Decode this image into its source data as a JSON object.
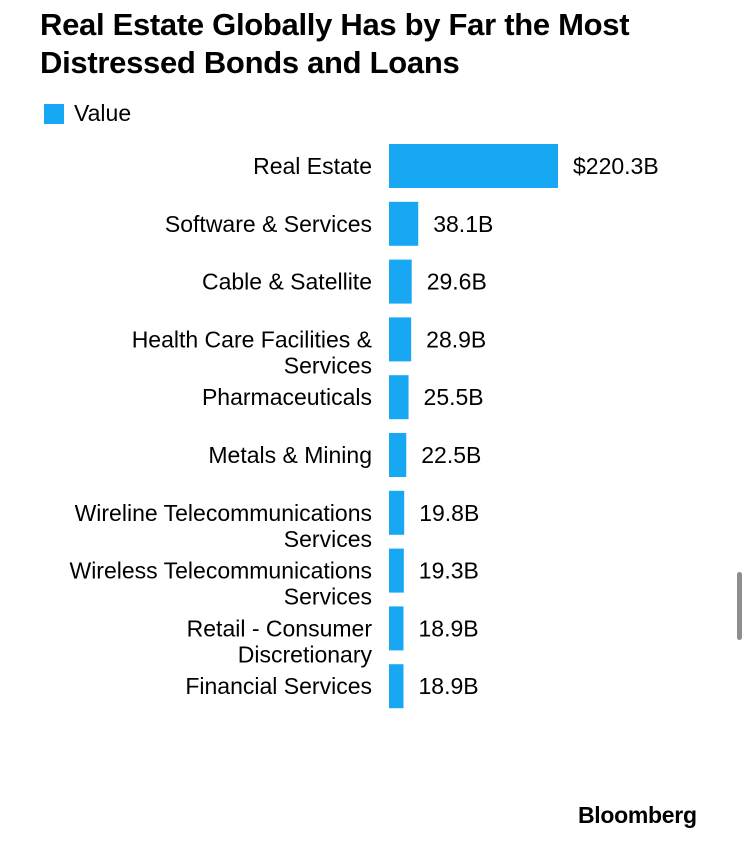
{
  "colors": {
    "bar": "#18a8f3",
    "text": "#000000",
    "background": "#ffffff",
    "scrollbar": "#8e8e8e"
  },
  "source": "Bloomberg",
  "chart_data": {
    "type": "bar",
    "orientation": "horizontal",
    "title": "Real Estate Globally Has by Far the Most Distressed Bonds and Loans",
    "legend": {
      "position": "top-left",
      "entries": [
        "Value"
      ]
    },
    "grid": false,
    "unit": "billion USD",
    "xlim": [
      0,
      220.3
    ],
    "categories": [
      "Real Estate",
      "Software & Services",
      "Cable & Satellite",
      "Health Care Facilities & Services",
      "Pharmaceuticals",
      "Metals & Mining",
      "Wireline Telecommunications Services",
      "Wireless Telecommunications Services",
      "Retail - Consumer Discretionary",
      "Financial Services"
    ],
    "category_lines": [
      [
        "Real Estate"
      ],
      [
        "Software & Services"
      ],
      [
        "Cable & Satellite"
      ],
      [
        "Health Care Facilities &",
        "Services"
      ],
      [
        "Pharmaceuticals"
      ],
      [
        "Metals & Mining"
      ],
      [
        "Wireline Telecommunications",
        "Services"
      ],
      [
        "Wireless Telecommunications",
        "Services"
      ],
      [
        "Retail - Consumer",
        "Discretionary"
      ],
      [
        "Financial Services"
      ]
    ],
    "series": [
      {
        "name": "Value",
        "values": [
          220.3,
          38.1,
          29.6,
          28.9,
          25.5,
          22.5,
          19.8,
          19.3,
          18.9,
          18.9
        ],
        "labels": [
          "$220.3B",
          "38.1B",
          "29.6B",
          "28.9B",
          "25.5B",
          "22.5B",
          "19.8B",
          "19.3B",
          "18.9B",
          "18.9B"
        ]
      }
    ]
  }
}
